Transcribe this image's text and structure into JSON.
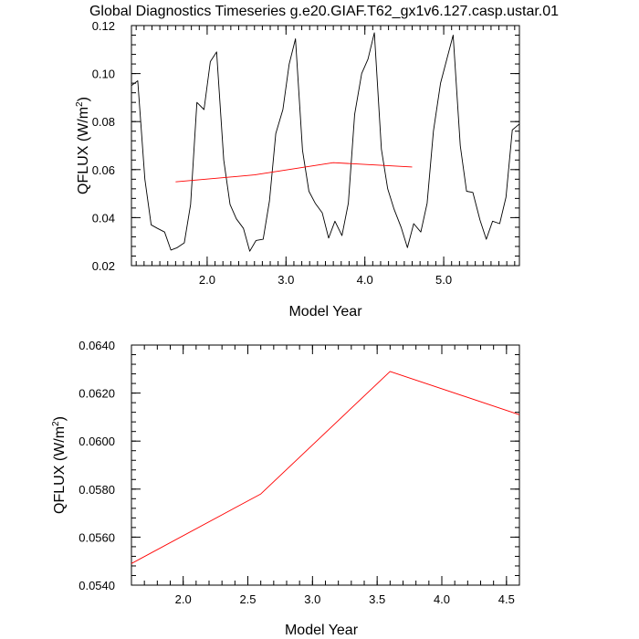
{
  "title": "Global Diagnostics Timeseries g.e20.GIAF.T62_gx1v6.127.casp.ustar.01",
  "chart_data": [
    {
      "type": "line",
      "xlabel": "Model Year",
      "ylabel_main": "QFLUX (W/m",
      "ylabel_sup": "2",
      "ylabel_close": ")",
      "xlim": [
        1.04,
        5.96
      ],
      "ylim": [
        0.02,
        0.12
      ],
      "xticks": [
        2.0,
        3.0,
        4.0,
        5.0
      ],
      "xtick_labels": [
        "2.0",
        "3.0",
        "4.0",
        "5.0"
      ],
      "yticks": [
        0.02,
        0.04,
        0.06,
        0.08,
        0.1,
        0.12
      ],
      "ytick_labels": [
        "0.02",
        "0.04",
        "0.06",
        "0.08",
        "0.10",
        "0.12"
      ],
      "series": [
        {
          "color": "#000000",
          "x": [
            1.04,
            1.12,
            1.21,
            1.29,
            1.37,
            1.46,
            1.54,
            1.62,
            1.71,
            1.79,
            1.87,
            1.96,
            2.04,
            2.12,
            2.21,
            2.29,
            2.37,
            2.46,
            2.54,
            2.62,
            2.71,
            2.79,
            2.87,
            2.96,
            3.04,
            3.12,
            3.21,
            3.29,
            3.37,
            3.46,
            3.54,
            3.62,
            3.71,
            3.79,
            3.87,
            3.96,
            4.04,
            4.12,
            4.21,
            4.29,
            4.37,
            4.46,
            4.54,
            4.62,
            4.71,
            4.79,
            4.87,
            4.96,
            5.04,
            5.12,
            5.21,
            5.29,
            5.37,
            5.46,
            5.54,
            5.62,
            5.71,
            5.79,
            5.87,
            5.96
          ],
          "y": [
            0.095,
            0.097,
            0.056,
            0.037,
            0.0355,
            0.034,
            0.0265,
            0.0275,
            0.0295,
            0.0455,
            0.088,
            0.085,
            0.105,
            0.109,
            0.064,
            0.0455,
            0.0395,
            0.0355,
            0.026,
            0.0305,
            0.031,
            0.047,
            0.075,
            0.085,
            0.104,
            0.1145,
            0.068,
            0.051,
            0.046,
            0.042,
            0.0315,
            0.0385,
            0.0325,
            0.046,
            0.083,
            0.1,
            0.106,
            0.117,
            0.0685,
            0.052,
            0.0435,
            0.036,
            0.0275,
            0.0375,
            0.034,
            0.046,
            0.076,
            0.096,
            0.106,
            0.116,
            0.07,
            0.051,
            0.0505,
            0.039,
            0.031,
            0.0385,
            0.0375,
            0.0485,
            0.0765,
            0.079
          ]
        },
        {
          "color": "#ff0000",
          "x": [
            1.6,
            2.6,
            3.6,
            4.6
          ],
          "y": [
            0.0549,
            0.0578,
            0.0629,
            0.0611
          ]
        }
      ]
    },
    {
      "type": "line",
      "xlabel": "Model Year",
      "ylabel_main": "QFLUX (W/m",
      "ylabel_sup": "2",
      "ylabel_close": ")",
      "xlim": [
        1.6,
        4.6
      ],
      "ylim": [
        0.054,
        0.064
      ],
      "xticks": [
        2.0,
        2.5,
        3.0,
        3.5,
        4.0,
        4.5
      ],
      "xtick_labels": [
        "2.0",
        "2.5",
        "3.0",
        "3.5",
        "4.0",
        "4.5"
      ],
      "yticks": [
        0.054,
        0.056,
        0.058,
        0.06,
        0.062,
        0.064
      ],
      "ytick_labels": [
        "0.0540",
        "0.0560",
        "0.0580",
        "0.0600",
        "0.0620",
        "0.0640"
      ],
      "series": [
        {
          "color": "#ff0000",
          "x": [
            1.6,
            2.6,
            3.6,
            4.6
          ],
          "y": [
            0.0549,
            0.0578,
            0.0629,
            0.0611
          ]
        }
      ]
    }
  ]
}
